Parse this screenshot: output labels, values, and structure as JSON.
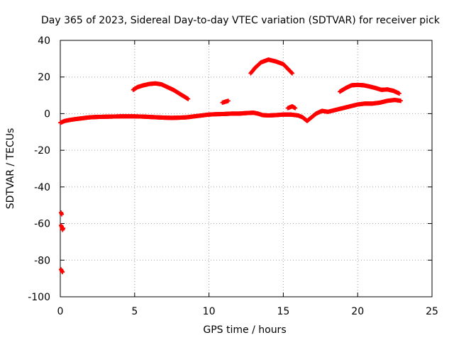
{
  "chart_data": {
    "type": "scatter",
    "title": "Day 365 of 2023, Sidereal Day-to-day VTEC variation (SDTVAR) for receiver pick",
    "xlabel": "GPS time / hours",
    "ylabel": "SDTVAR / TECUs",
    "xlim": [
      0,
      25
    ],
    "ylim": [
      -100,
      40
    ],
    "xticks": [
      0,
      5,
      10,
      15,
      20,
      25
    ],
    "yticks": [
      -100,
      -80,
      -60,
      -40,
      -20,
      0,
      20,
      40
    ],
    "xtick_labels": [
      "0",
      "5",
      "10",
      "15",
      "20",
      "25"
    ],
    "ytick_labels": [
      "-100",
      "-80",
      "-60",
      "-40",
      "-20",
      "0",
      "20",
      "40"
    ],
    "grid": true,
    "marker": "+",
    "series": [
      {
        "name": "SDTVAR",
        "color": "#ff0000",
        "segments": [
          [
            [
              0.0,
              -5
            ],
            [
              0.3,
              -4
            ],
            [
              0.6,
              -3.5
            ],
            [
              1.0,
              -3
            ],
            [
              1.5,
              -2.5
            ],
            [
              2.0,
              -2
            ],
            [
              2.5,
              -1.8
            ],
            [
              3.0,
              -1.7
            ],
            [
              3.5,
              -1.6
            ],
            [
              4.0,
              -1.5
            ],
            [
              4.5,
              -1.5
            ],
            [
              5.0,
              -1.5
            ],
            [
              5.5,
              -1.6
            ],
            [
              6.0,
              -1.8
            ],
            [
              6.5,
              -2
            ],
            [
              7.0,
              -2.2
            ],
            [
              7.5,
              -2.3
            ],
            [
              8.0,
              -2.2
            ],
            [
              8.5,
              -2
            ],
            [
              9.0,
              -1.5
            ],
            [
              9.5,
              -1
            ],
            [
              10.0,
              -0.5
            ],
            [
              10.5,
              -0.3
            ],
            [
              11.0,
              -0.2
            ],
            [
              11.5,
              0
            ],
            [
              12.0,
              0
            ],
            [
              12.5,
              0.3
            ],
            [
              13.0,
              0.5
            ],
            [
              13.3,
              0
            ],
            [
              13.6,
              -0.8
            ],
            [
              14.0,
              -1
            ],
            [
              14.5,
              -0.8
            ],
            [
              15.0,
              -0.5
            ],
            [
              15.5,
              -0.5
            ],
            [
              16.0,
              -1
            ],
            [
              16.3,
              -2
            ],
            [
              16.6,
              -4
            ],
            [
              16.9,
              -2
            ],
            [
              17.2,
              0
            ],
            [
              17.6,
              1.5
            ],
            [
              18.0,
              1
            ],
            [
              18.5,
              2
            ],
            [
              19.0,
              3
            ],
            [
              19.5,
              4
            ],
            [
              20.0,
              5
            ],
            [
              20.5,
              5.5
            ],
            [
              21.0,
              5.5
            ],
            [
              21.5,
              6
            ],
            [
              22.0,
              7
            ],
            [
              22.5,
              7.5
            ],
            [
              22.9,
              7
            ]
          ],
          [
            [
              4.9,
              13
            ],
            [
              5.2,
              14.5
            ],
            [
              5.6,
              15.5
            ],
            [
              6.0,
              16.2
            ],
            [
              6.4,
              16.5
            ],
            [
              6.8,
              16
            ],
            [
              7.2,
              14.5
            ],
            [
              7.6,
              13
            ],
            [
              8.0,
              11
            ],
            [
              8.4,
              9
            ],
            [
              8.6,
              8
            ]
          ],
          [
            [
              10.9,
              6
            ],
            [
              11.1,
              6.5
            ],
            [
              11.3,
              7
            ]
          ],
          [
            [
              12.8,
              22
            ],
            [
              13.1,
              25
            ],
            [
              13.5,
              28
            ],
            [
              14.0,
              29.5
            ],
            [
              14.5,
              28.5
            ],
            [
              15.0,
              27
            ],
            [
              15.3,
              24.5
            ],
            [
              15.6,
              22
            ]
          ],
          [
            [
              15.3,
              3
            ],
            [
              15.6,
              4
            ],
            [
              15.8,
              3
            ]
          ],
          [
            [
              18.8,
              12
            ],
            [
              19.2,
              14
            ],
            [
              19.6,
              15.5
            ],
            [
              20.0,
              15.7
            ],
            [
              20.4,
              15.5
            ],
            [
              20.8,
              14.8
            ],
            [
              21.2,
              14
            ],
            [
              21.6,
              13
            ],
            [
              22.0,
              13.2
            ],
            [
              22.4,
              12.5
            ],
            [
              22.8,
              11
            ]
          ],
          [
            [
              0.05,
              -54
            ],
            [
              0.1,
              -55
            ]
          ],
          [
            [
              0.05,
              -61
            ],
            [
              0.1,
              -62
            ],
            [
              0.15,
              -63.5
            ],
            [
              0.2,
              -62.5
            ]
          ],
          [
            [
              0.05,
              -85
            ],
            [
              0.1,
              -86
            ],
            [
              0.15,
              -86.5
            ]
          ]
        ]
      }
    ]
  }
}
